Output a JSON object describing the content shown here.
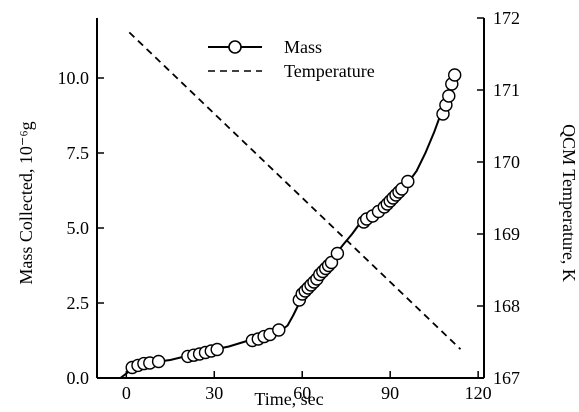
{
  "chart_data": {
    "type": "line",
    "title": "",
    "xlabel": "Time, sec",
    "ylabel_left": "Mass Collected, 10⁻⁶g",
    "ylabel_right": "QCM Temperature, K",
    "x_ticks": [
      "0",
      "30",
      "60",
      "90",
      "120"
    ],
    "y_left_ticks": [
      "0.0",
      "2.5",
      "5.0",
      "7.5",
      "10.0"
    ],
    "y_right_ticks": [
      "167",
      "168",
      "169",
      "170",
      "171",
      "172"
    ],
    "xlim": [
      -10,
      122
    ],
    "ylim_left": [
      0,
      12
    ],
    "ylim_right": [
      167,
      172
    ],
    "grid": false,
    "legend_position": "top-center",
    "series": [
      {
        "name": "Mass",
        "axis": "left",
        "style": "solid-line-with-open-circles",
        "line": [
          [
            -2,
            0.0
          ],
          [
            0,
            0.15
          ],
          [
            2,
            0.3
          ],
          [
            5,
            0.45
          ],
          [
            8,
            0.5
          ],
          [
            11,
            0.55
          ],
          [
            15,
            0.6
          ],
          [
            20,
            0.72
          ],
          [
            25,
            0.82
          ],
          [
            30,
            0.95
          ],
          [
            35,
            1.05
          ],
          [
            40,
            1.2
          ],
          [
            45,
            1.35
          ],
          [
            50,
            1.5
          ],
          [
            53,
            1.6
          ],
          [
            55,
            1.75
          ],
          [
            57,
            2.1
          ],
          [
            59,
            2.5
          ],
          [
            61,
            2.8
          ],
          [
            64,
            3.1
          ],
          [
            67,
            3.45
          ],
          [
            70,
            3.8
          ],
          [
            72,
            4.2
          ],
          [
            74,
            4.45
          ],
          [
            77,
            4.8
          ],
          [
            80,
            5.2
          ],
          [
            84,
            5.5
          ],
          [
            88,
            5.8
          ],
          [
            92,
            6.1
          ],
          [
            96,
            6.5
          ],
          [
            99,
            6.9
          ],
          [
            102,
            7.5
          ],
          [
            105,
            8.2
          ],
          [
            108,
            9.0
          ],
          [
            110,
            9.5
          ],
          [
            112,
            10.1
          ]
        ],
        "markers": [
          [
            2,
            0.35
          ],
          [
            4,
            0.42
          ],
          [
            6,
            0.48
          ],
          [
            8,
            0.5
          ],
          [
            11,
            0.55
          ],
          [
            21,
            0.72
          ],
          [
            23,
            0.76
          ],
          [
            25,
            0.8
          ],
          [
            27,
            0.85
          ],
          [
            29,
            0.9
          ],
          [
            31,
            0.95
          ],
          [
            43,
            1.25
          ],
          [
            45,
            1.3
          ],
          [
            47,
            1.38
          ],
          [
            49,
            1.45
          ],
          [
            52,
            1.6
          ],
          [
            59,
            2.6
          ],
          [
            60,
            2.8
          ],
          [
            61,
            2.9
          ],
          [
            62,
            3.0
          ],
          [
            63,
            3.1
          ],
          [
            64,
            3.2
          ],
          [
            65,
            3.3
          ],
          [
            66,
            3.45
          ],
          [
            67,
            3.55
          ],
          [
            68,
            3.65
          ],
          [
            69,
            3.75
          ],
          [
            70,
            3.85
          ],
          [
            72,
            4.15
          ],
          [
            81,
            5.2
          ],
          [
            82,
            5.3
          ],
          [
            84,
            5.4
          ],
          [
            86,
            5.55
          ],
          [
            88,
            5.7
          ],
          [
            89,
            5.8
          ],
          [
            90,
            5.9
          ],
          [
            91,
            6.0
          ],
          [
            92,
            6.1
          ],
          [
            93,
            6.2
          ],
          [
            94,
            6.3
          ],
          [
            96,
            6.55
          ],
          [
            108,
            8.8
          ],
          [
            109,
            9.1
          ],
          [
            110,
            9.4
          ],
          [
            111,
            9.8
          ],
          [
            112,
            10.1
          ]
        ]
      },
      {
        "name": "Temperature",
        "axis": "right",
        "style": "dashed",
        "points": [
          [
            1,
            171.8
          ],
          [
            114,
            167.4
          ]
        ]
      }
    ]
  }
}
